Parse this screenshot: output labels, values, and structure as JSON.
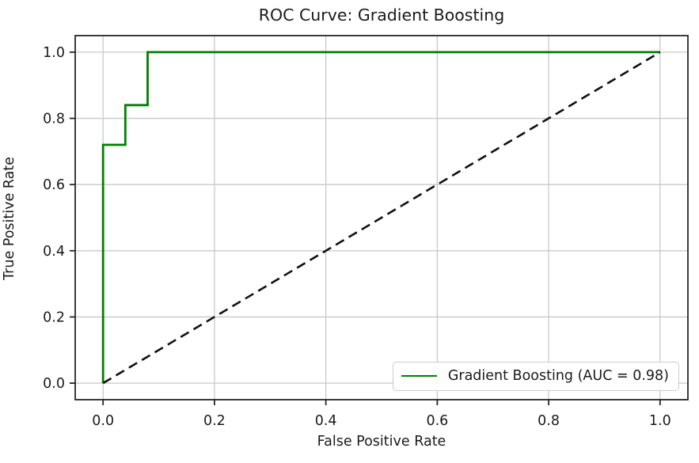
{
  "chart_data": {
    "type": "line",
    "subtype": "roc-step-curve",
    "title": "ROC Curve: Gradient Boosting",
    "xlabel": "False Positive Rate",
    "ylabel": "True Positive Rate",
    "xlim": [
      -0.05,
      1.05
    ],
    "ylim": [
      -0.05,
      1.05
    ],
    "xticks": [
      0.0,
      0.2,
      0.4,
      0.6,
      0.8,
      1.0
    ],
    "yticks": [
      0.0,
      0.2,
      0.4,
      0.6,
      0.8,
      1.0
    ],
    "xtick_labels": [
      "0.0",
      "0.2",
      "0.4",
      "0.6",
      "0.8",
      "1.0"
    ],
    "ytick_labels": [
      "0.0",
      "0.2",
      "0.4",
      "0.6",
      "0.8",
      "1.0"
    ],
    "grid": true,
    "grid_color": "#c9c9c9",
    "spine_color": "#262626",
    "background_color": "#ffffff",
    "legend_position": "lower right",
    "auc": 0.98,
    "series": [
      {
        "name": "Gradient Boosting (AUC = 0.98)",
        "color": "#008000",
        "style": "solid",
        "line_width": 2.8,
        "in_legend": true,
        "x": [
          0.0,
          0.0,
          0.04,
          0.04,
          0.08,
          0.08,
          1.0
        ],
        "y": [
          0.0,
          0.72,
          0.72,
          0.84,
          0.84,
          1.0,
          1.0
        ]
      },
      {
        "name": "chance-diagonal",
        "color": "#111111",
        "style": "dashed",
        "line_width": 2.6,
        "in_legend": false,
        "x": [
          0.0,
          1.0
        ],
        "y": [
          0.0,
          1.0
        ]
      }
    ]
  }
}
